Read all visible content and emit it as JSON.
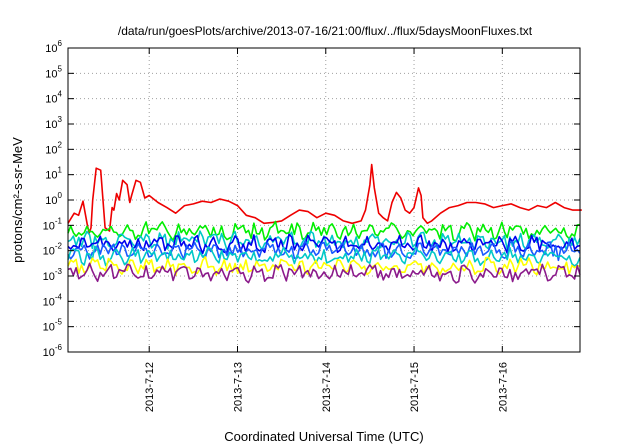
{
  "chart_data": {
    "type": "line",
    "title": "/data/run/goesPlots/archive/2013-07-16/21:00/flux/../flux/5daysMoonFluxes.txt",
    "xlabel": "Coordinated Universal Time (UTC)",
    "ylabel": "protons/cm²-s-sr-MeV",
    "y_scale": "log",
    "ylim_exp": [
      -6,
      6
    ],
    "y_tick_labels": [
      "10-6",
      "10-5",
      "10-4",
      "10-3",
      "10-2",
      "10-1",
      "100",
      "101",
      "102",
      "103",
      "104",
      "105",
      "106"
    ],
    "x_range_days": [
      "2013-07-11 ~02:00",
      "2013-07-16 ~21:00"
    ],
    "x_tick_labels": [
      "2013-7-12",
      "2013-7-13",
      "2013-7-14",
      "2013-7-15",
      "2013-7-16"
    ],
    "grid": true,
    "colors": {
      "red": "#ee0000",
      "green": "#00ee00",
      "cyan": "#00c8c8",
      "blue": "#0000ee",
      "mid-blue": "#1a5aff",
      "yellow": "#ffff00",
      "purple": "#8b1a8b"
    },
    "series": [
      {
        "color": "red",
        "x": [
          11.08,
          11.15,
          11.2,
          11.25,
          11.3,
          11.32,
          11.34,
          11.36,
          11.4,
          11.45,
          11.5,
          11.55,
          11.58,
          11.6,
          11.63,
          11.66,
          11.7,
          11.75,
          11.78,
          11.8,
          11.85,
          11.9,
          11.95,
          12.0,
          12.1,
          12.2,
          12.3,
          12.4,
          12.5,
          12.6,
          12.7,
          12.8,
          12.9,
          13.0,
          13.1,
          13.2,
          13.3,
          13.4,
          13.5,
          13.6,
          13.7,
          13.8,
          13.9,
          14.0,
          14.1,
          14.2,
          14.3,
          14.4,
          14.45,
          14.5,
          14.52,
          14.55,
          14.6,
          14.65,
          14.7,
          14.75,
          14.8,
          14.85,
          14.9,
          14.95,
          15.0,
          15.05,
          15.08,
          15.1,
          15.15,
          15.2,
          15.3,
          15.4,
          15.5,
          15.6,
          15.7,
          15.8,
          15.9,
          16.0,
          16.1,
          16.2,
          16.3,
          16.4,
          16.5,
          16.6,
          16.7,
          16.8,
          16.9
        ],
        "y": [
          0.12,
          0.3,
          0.25,
          0.9,
          0.1,
          0.05,
          0.08,
          1.0,
          18,
          15,
          0.08,
          0.06,
          0.5,
          0.4,
          1.8,
          1.0,
          6,
          4,
          0.8,
          1.5,
          6,
          5,
          1.2,
          1.5,
          0.8,
          0.5,
          0.3,
          0.6,
          0.7,
          0.9,
          0.8,
          1.1,
          0.9,
          0.6,
          0.25,
          0.2,
          0.12,
          0.13,
          0.15,
          0.25,
          0.4,
          0.35,
          0.2,
          0.3,
          0.25,
          0.15,
          0.12,
          0.15,
          0.4,
          4,
          25,
          3,
          0.3,
          0.2,
          0.15,
          0.8,
          2,
          1.2,
          0.4,
          0.3,
          0.5,
          3,
          1.5,
          0.2,
          0.12,
          0.15,
          0.3,
          0.5,
          0.6,
          0.8,
          0.8,
          0.7,
          0.5,
          0.6,
          0.7,
          0.5,
          0.4,
          0.6,
          0.5,
          0.8,
          0.5,
          0.4,
          0.4
        ]
      },
      {
        "color": "green",
        "base": 0.06
      },
      {
        "color": "cyan",
        "base": 0.025
      },
      {
        "color": "blue",
        "base": 0.018
      },
      {
        "color": "mid-blue",
        "base": 0.01
      },
      {
        "color": "cyan",
        "base": 0.006
      },
      {
        "color": "yellow",
        "base": 0.0025
      },
      {
        "color": "purple",
        "base": 0.0013
      }
    ]
  }
}
